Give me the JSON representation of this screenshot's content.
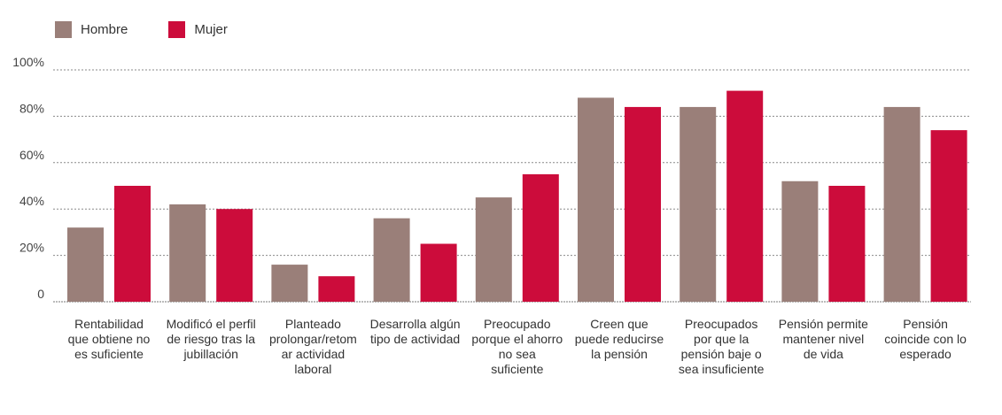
{
  "chart_data": {
    "type": "bar",
    "categories": [
      "Rentabilidad que obtiene no es suficiente",
      "Modificó el perfil de riesgo tras la jubillación",
      "Planteado prolongar/retomar actividad laboral",
      "Desarrolla algún tipo de actividad",
      "Preocupado porque el ahorro no sea suficiente",
      "Creen que puede reducirse la pensión",
      "Preocupados por que la pensión baje o sea insuficiente",
      "Pensión permite mantener nivel de vida",
      "Pensión coincide con lo esperado"
    ],
    "series": [
      {
        "name": "Hombre",
        "color": "#9a7f79",
        "values": [
          32,
          42,
          16,
          36,
          45,
          88,
          84,
          52,
          84
        ]
      },
      {
        "name": "Mujer",
        "color": "#cc0c3b",
        "values": [
          50,
          40,
          11,
          25,
          55,
          84,
          91,
          50,
          74
        ]
      }
    ],
    "y_ticks": [
      "0",
      "20%",
      "40%",
      "60%",
      "80%",
      "100%"
    ],
    "y_tick_values": [
      0,
      20,
      40,
      60,
      80,
      100
    ],
    "ylim": [
      0,
      100
    ],
    "grid": "dotted horizontal",
    "legend_position": "top-left",
    "title": "",
    "xlabel": "",
    "ylabel": ""
  }
}
